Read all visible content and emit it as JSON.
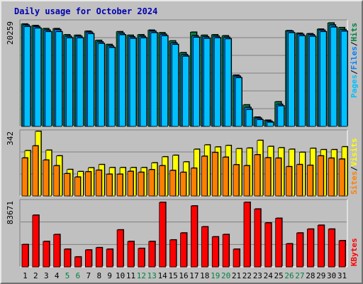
{
  "title": "Daily usage for October 2024",
  "colors": {
    "background": "#c0c0c0",
    "title": "#0000b0",
    "hits": "#008040",
    "files": "#0080ff",
    "pages": "#00c0ff",
    "visits": "#ffff00",
    "sites": "#ff8000",
    "kbytes": "#ff0000",
    "weekend": "#008040",
    "weekday": "#000000"
  },
  "legends": {
    "top": [
      "Pages",
      "Files",
      "Hits"
    ],
    "top_sep": "/",
    "middle": [
      "Sites",
      "Visits"
    ],
    "middle_sep": "/",
    "bottom": [
      "KBytes"
    ]
  },
  "chart_data": [
    {
      "type": "bar",
      "name": "hits-files-pages",
      "ymax_label": "20259",
      "ylim": [
        0,
        20259
      ],
      "categories": [
        "1",
        "2",
        "3",
        "4",
        "5",
        "6",
        "7",
        "8",
        "9",
        "10",
        "11",
        "12",
        "13",
        "14",
        "15",
        "16",
        "17",
        "18",
        "19",
        "20",
        "21",
        "22",
        "23",
        "24",
        "25",
        "26",
        "27",
        "28",
        "29",
        "30",
        "31"
      ],
      "weekend_days": [
        "5",
        "6",
        "12",
        "13",
        "19",
        "20",
        "26",
        "27"
      ],
      "series": [
        {
          "name": "Hits",
          "values": [
            20000,
            19700,
            19100,
            19100,
            17900,
            17800,
            18600,
            16800,
            16000,
            18500,
            17800,
            17900,
            18800,
            18300,
            16700,
            14400,
            18400,
            17800,
            17900,
            17700,
            10000,
            4200,
            1800,
            1200,
            4800,
            18700,
            18200,
            18100,
            19000,
            20200,
            19300
          ]
        },
        {
          "name": "Files",
          "values": [
            19800,
            19500,
            18800,
            18900,
            17600,
            17600,
            18400,
            16500,
            15700,
            18200,
            17500,
            17600,
            18600,
            18000,
            16300,
            14000,
            17700,
            17500,
            17600,
            17400,
            9800,
            3700,
            1600,
            1000,
            4300,
            18600,
            18000,
            17900,
            18800,
            19800,
            18900
          ]
        },
        {
          "name": "Pages",
          "values": [
            19500,
            19200,
            18500,
            18500,
            17300,
            17300,
            18100,
            16200,
            15400,
            17900,
            17200,
            17300,
            18300,
            17700,
            16000,
            13700,
            17400,
            17200,
            17300,
            17100,
            9500,
            3300,
            1300,
            800,
            4000,
            18300,
            17700,
            17600,
            18500,
            19400,
            18600
          ]
        }
      ]
    },
    {
      "type": "bar",
      "name": "visits-sites",
      "ymax_label": "342",
      "ylim": [
        0,
        342
      ],
      "categories": [
        "1",
        "2",
        "3",
        "4",
        "5",
        "6",
        "7",
        "8",
        "9",
        "10",
        "11",
        "12",
        "13",
        "14",
        "15",
        "16",
        "17",
        "18",
        "19",
        "20",
        "21",
        "22",
        "23",
        "24",
        "25",
        "26",
        "27",
        "28",
        "29",
        "30",
        "31"
      ],
      "series": [
        {
          "name": "Visits",
          "values": [
            240,
            342,
            242,
            212,
            140,
            129,
            149,
            166,
            150,
            150,
            150,
            150,
            175,
            207,
            215,
            180,
            247,
            270,
            259,
            267,
            250,
            253,
            294,
            262,
            255,
            247,
            231,
            252,
            245,
            245,
            260
          ]
        },
        {
          "name": "Sites",
          "values": [
            201,
            265,
            190,
            160,
            118,
            100,
            128,
            136,
            115,
            115,
            130,
            125,
            139,
            160,
            135,
            125,
            147,
            210,
            230,
            205,
            165,
            160,
            218,
            202,
            200,
            155,
            166,
            162,
            212,
            200,
            195
          ]
        }
      ]
    },
    {
      "type": "bar",
      "name": "kbytes",
      "ymax_label": "83671",
      "ylim": [
        0,
        83671
      ],
      "categories": [
        "1",
        "2",
        "3",
        "4",
        "5",
        "6",
        "7",
        "8",
        "9",
        "10",
        "11",
        "12",
        "13",
        "14",
        "15",
        "16",
        "17",
        "18",
        "19",
        "20",
        "21",
        "22",
        "23",
        "24",
        "25",
        "26",
        "27",
        "28",
        "29",
        "30",
        "31"
      ],
      "series": [
        {
          "name": "KBytes",
          "values": [
            29000,
            67000,
            33000,
            42000,
            23000,
            13000,
            22000,
            25000,
            23000,
            48000,
            33000,
            24000,
            33000,
            83600,
            35000,
            44000,
            79000,
            52000,
            39000,
            42000,
            23000,
            83671,
            75000,
            57000,
            63000,
            30000,
            44000,
            49000,
            54000,
            49000,
            34000
          ]
        }
      ]
    }
  ]
}
